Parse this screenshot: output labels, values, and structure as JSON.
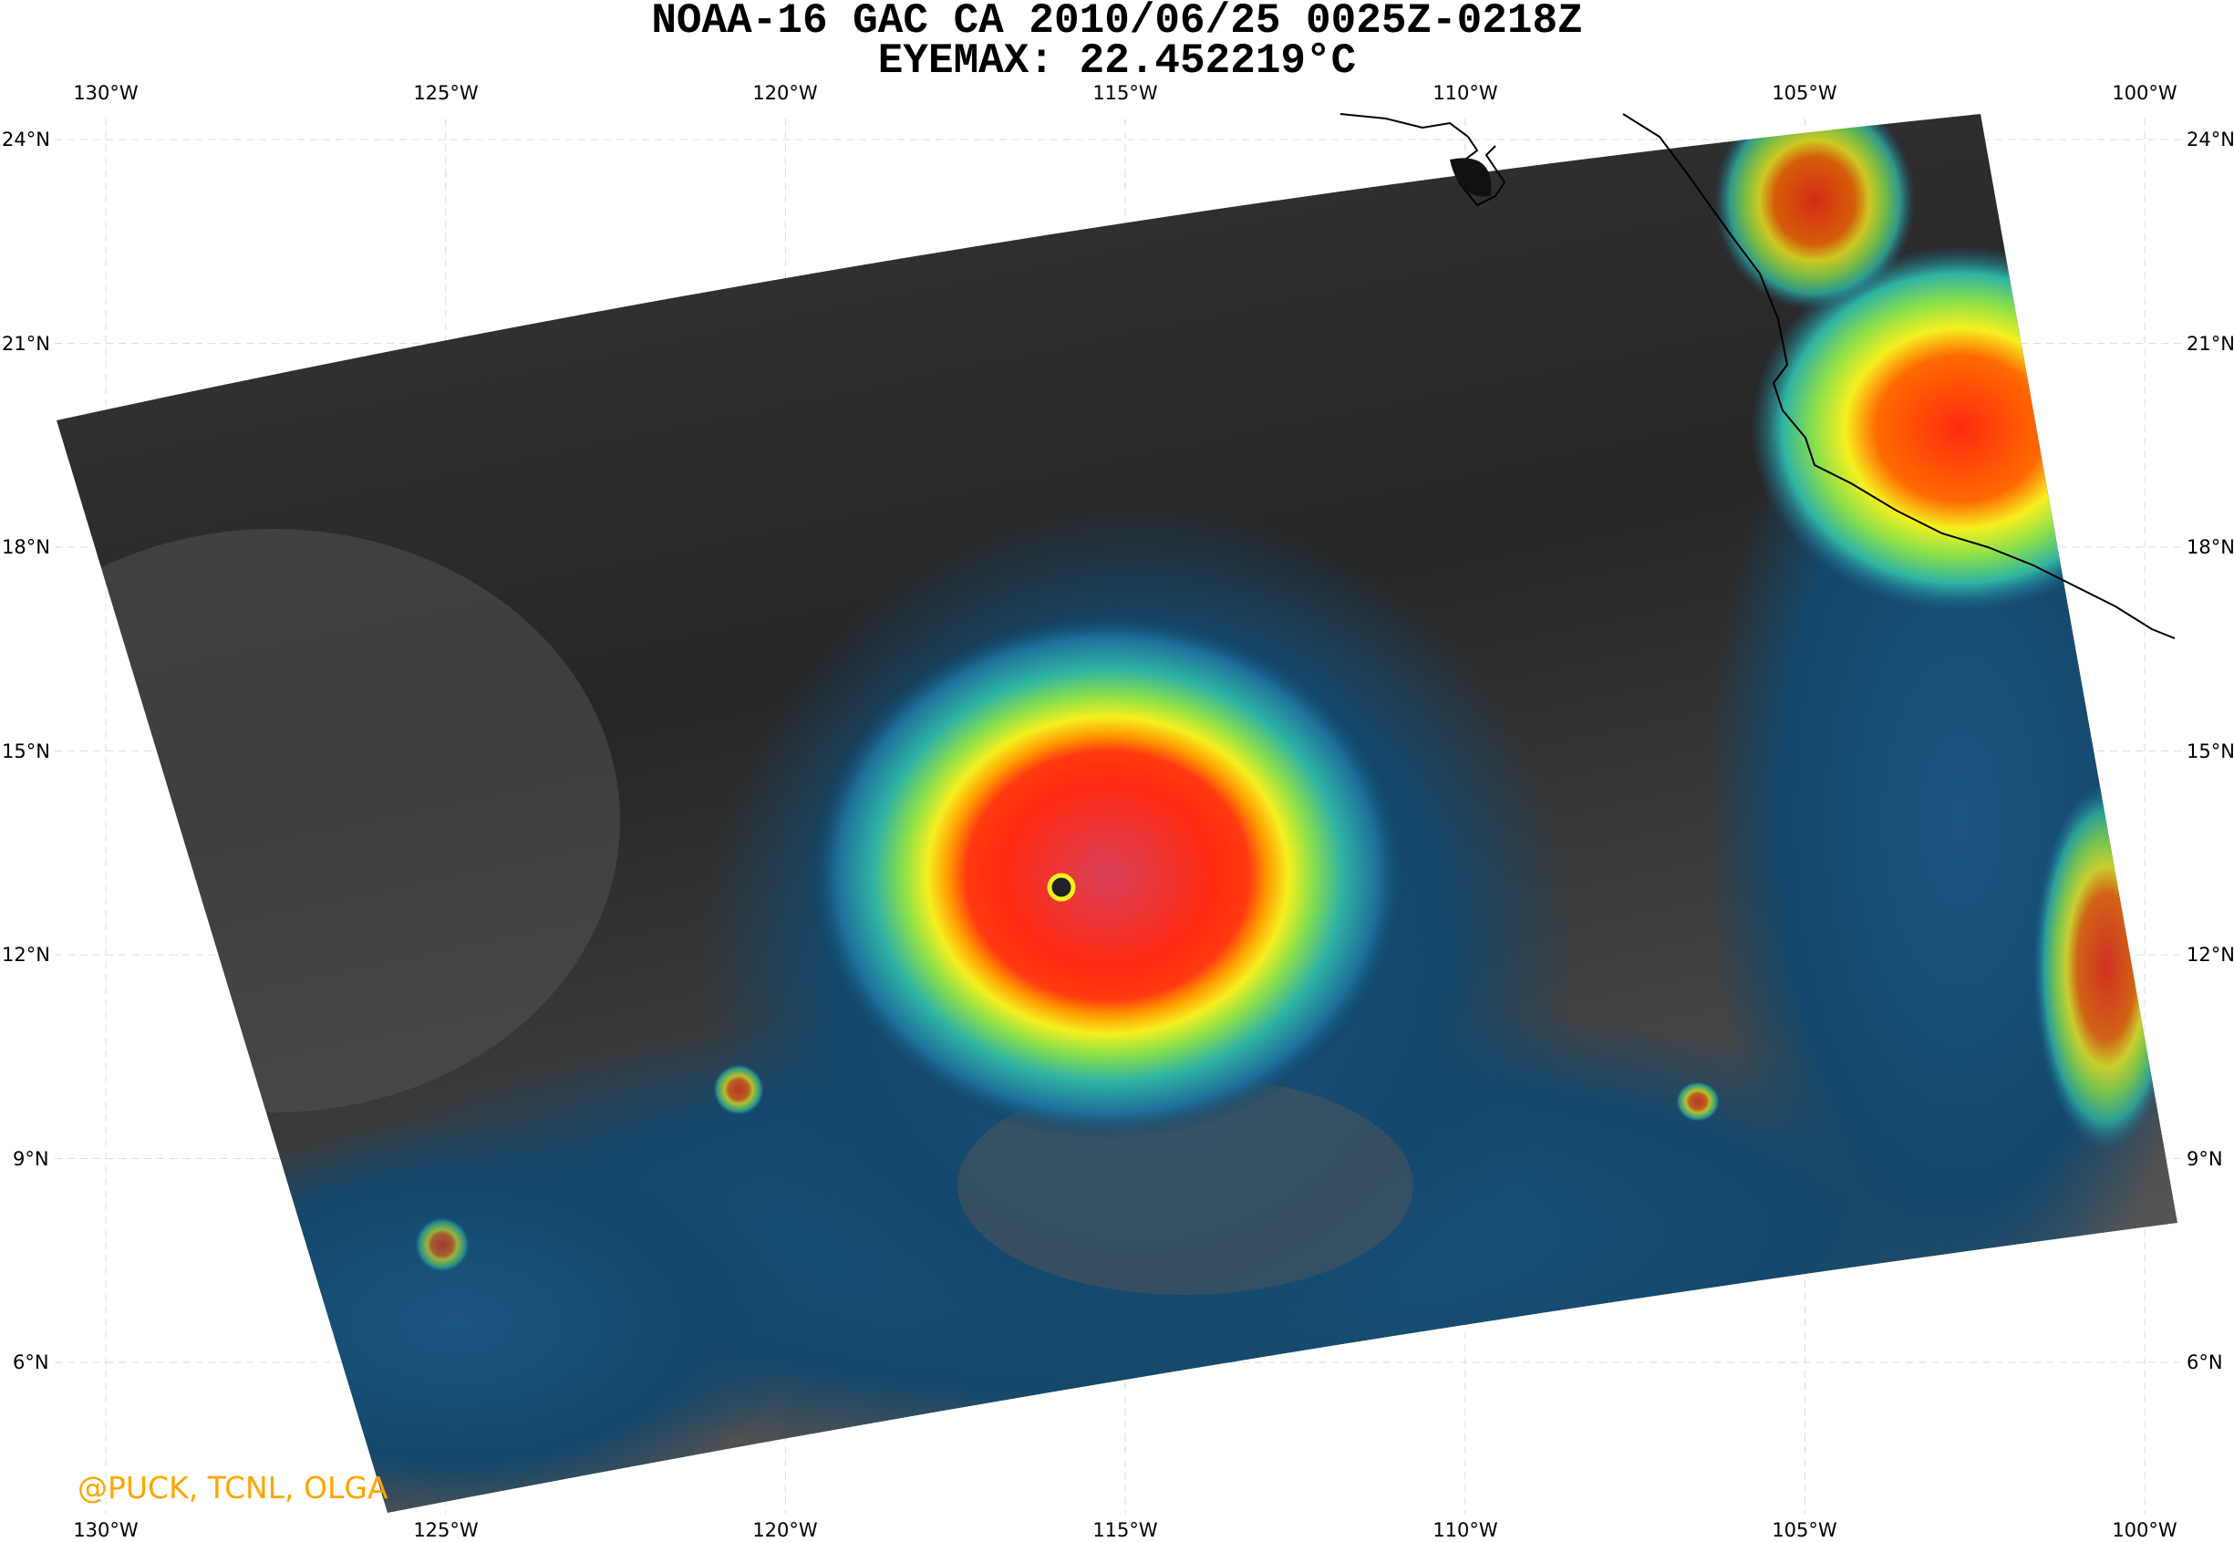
{
  "title": {
    "line1": "NOAA-16 GAC CA 2010/06/25 0025Z-0218Z",
    "line2": "EYEMAX: 22.452219°C"
  },
  "map": {
    "lon_labels": [
      "130°W",
      "125°W",
      "120°W",
      "115°W",
      "110°W",
      "105°W",
      "100°W"
    ],
    "lat_labels": [
      "24°N",
      "21°N",
      "18°N",
      "15°N",
      "12°N",
      "9°N",
      "6°N"
    ],
    "gridlines": "dashed light gray",
    "colormap": [
      "#0b3a5c",
      "#1f6f9a",
      "#2fb3a3",
      "#8be04a",
      "#f5f020",
      "#ff9a00",
      "#ff2a10",
      "#d8202a"
    ],
    "background_gray": "#2a2a2a",
    "coastline_color": "#000000"
  },
  "watermark": "@PUCK, TCNL, OLGA"
}
